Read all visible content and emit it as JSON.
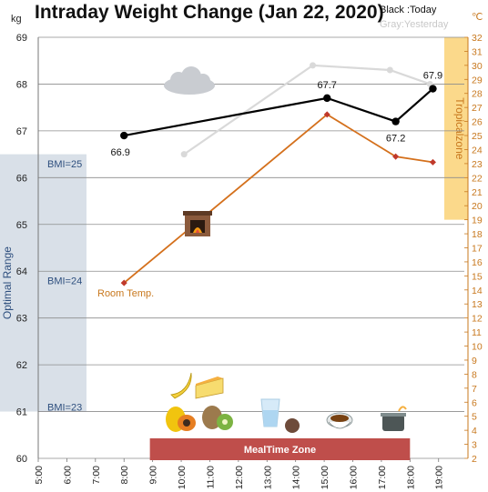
{
  "chart_data": {
    "type": "line",
    "title": "Intraday Weight Change (Jan 22, 2020)",
    "legend": {
      "today": "Black :Today",
      "yesterday": "Gray:Yesterday"
    },
    "y_left": {
      "unit": "kg",
      "range": [
        60,
        69
      ],
      "ticks": [
        "60",
        "61",
        "62",
        "63",
        "64",
        "65",
        "66",
        "67",
        "68",
        "69"
      ]
    },
    "y_right": {
      "unit": "℃",
      "range": [
        2,
        32
      ],
      "ticks": [
        "2",
        "3",
        "4",
        "5",
        "6",
        "7",
        "8",
        "9",
        "10",
        "11",
        "12",
        "13",
        "14",
        "15",
        "16",
        "17",
        "18",
        "19",
        "20",
        "21",
        "22",
        "23",
        "24",
        "25",
        "26",
        "27",
        "28",
        "29",
        "30",
        "31",
        "32"
      ]
    },
    "x_ticks": [
      "5:00",
      "6:00",
      "7:00",
      "8:00",
      "9:00",
      "10:00",
      "11:00",
      "12:00",
      "13:00",
      "14:00",
      "15:00",
      "16:00",
      "17:00",
      "18:00",
      "19:00"
    ],
    "grid": true,
    "series": [
      {
        "name": "Today",
        "axis": "left",
        "color": "#000000",
        "x": [
          8.0,
          15.1,
          17.5,
          18.8
        ],
        "y": [
          66.9,
          67.7,
          67.2,
          67.9
        ],
        "labels": [
          "66.9",
          "67.7",
          "67.2",
          "67.9"
        ]
      },
      {
        "name": "Yesterday",
        "axis": "left",
        "color": "#d9d9d9",
        "x": [
          10.1,
          14.6,
          17.3,
          18.7
        ],
        "y": [
          66.5,
          68.4,
          68.3,
          68.0
        ]
      },
      {
        "name": "Room Temp.",
        "axis": "right",
        "color": "#d4701c",
        "x": [
          8.0,
          15.1,
          17.5,
          18.8
        ],
        "y": [
          14.5,
          26.5,
          23.5,
          23.1
        ]
      }
    ],
    "annotations": {
      "optimal_range": {
        "label": "Optimal Range",
        "from": 61,
        "to": 66.5
      },
      "bmi_marks": [
        {
          "label": "BMI=25",
          "y": 66.3
        },
        {
          "label": "BMI=24",
          "y": 63.8
        },
        {
          "label": "BMI=23",
          "y": 61.1
        }
      ],
      "tropical_zone": {
        "label": "Tropicalzone",
        "from": 19,
        "to": 32
      },
      "meal_time_zone": {
        "label": "MealTime Zone",
        "from": 9.0,
        "to": 18.0
      },
      "room_temp_label": "Room Temp."
    }
  }
}
